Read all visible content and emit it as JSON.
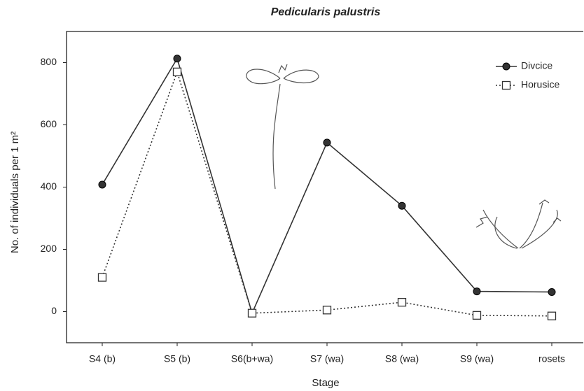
{
  "chart_data": {
    "type": "line",
    "title": "Pedicularis palustris",
    "x_label": "Stage",
    "y_label": "No. of individuals per 1 m²",
    "categories": [
      "S4 (b)",
      "S5 (b)",
      "S6(b+wa)",
      "S7 (wa)",
      "S8 (wa)",
      "S9 (wa)",
      "rosets"
    ],
    "series": [
      {
        "name": "Divcice",
        "color": "#333333",
        "marker": "circle",
        "line_style": "solid",
        "values": [
          408,
          813,
          -5,
          543,
          340,
          65,
          63
        ]
      },
      {
        "name": "Horusice",
        "color": "#333333",
        "marker": "square",
        "line_style": "dotted",
        "values": [
          110,
          770,
          -5,
          5,
          30,
          -12,
          -14
        ]
      }
    ],
    "ylim": [
      -100,
      900
    ],
    "yticks": [
      0,
      200,
      400,
      600,
      800
    ],
    "grid": false,
    "legend": "upper right"
  }
}
